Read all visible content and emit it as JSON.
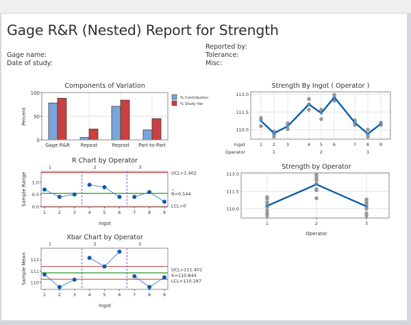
{
  "report": {
    "title": "Gage R&R (Nested) Report for Strength",
    "left_meta": [
      "Gage name:",
      "Date of study:"
    ],
    "right_meta": [
      "Reported by:",
      "Tolerance:",
      "Misc:"
    ]
  },
  "colors": {
    "contribution": "#7ba4d8",
    "study_var": "#c94040",
    "series_line": "#0a5caa",
    "points": "#999999",
    "control_limit": "#c06060",
    "center_line": "#3a9a3a",
    "divider": "#7a4fd0"
  },
  "chart_data": [
    {
      "id": "components",
      "type": "bar",
      "title": "Components of Variation",
      "ylabel": "Percent",
      "categories": [
        "Gage R&R",
        "Repeat",
        "Reprod",
        "Part-to-Part"
      ],
      "series": [
        {
          "name": "% Contribution",
          "values": [
            78,
            5,
            71,
            21
          ]
        },
        {
          "name": "% Study Var",
          "values": [
            88,
            23,
            84,
            45
          ]
        }
      ],
      "ylim": [
        0,
        100
      ],
      "yticks": [
        0,
        50,
        100
      ],
      "legend": "right"
    },
    {
      "id": "r_chart",
      "type": "line",
      "title": "R Chart by Operator",
      "xlabel": "Ingot",
      "ylabel": "Sample Range",
      "x": [
        1,
        2,
        3,
        4,
        5,
        6,
        7,
        8,
        9
      ],
      "values": [
        0.7,
        0.4,
        0.5,
        0.9,
        0.8,
        0.4,
        0.4,
        0.6,
        0.2
      ],
      "groups": [
        "1",
        "2",
        "3"
      ],
      "group_breaks": [
        3.5,
        6.5
      ],
      "ucl": 1.402,
      "center": 0.544,
      "lcl": 0,
      "ucl_label": "UCL=1.402",
      "center_label": "R=0.544",
      "lcl_label": "LCL=0",
      "ylim": [
        -0.02,
        1.45
      ],
      "yticks": [
        "0.0",
        "0.5",
        "1.0"
      ]
    },
    {
      "id": "xbar_chart",
      "type": "line",
      "title": "Xbar Chart by Operator",
      "xlabel": "Ingot",
      "ylabel": "Sample Mean",
      "x": [
        1,
        2,
        3,
        4,
        5,
        6,
        7,
        8,
        9
      ],
      "values": [
        110.7,
        109.6,
        110.25,
        112.15,
        111.4,
        112.7,
        110.55,
        109.6,
        110.45
      ],
      "groups": [
        "1",
        "2",
        "3"
      ],
      "group_breaks": [
        3.5,
        6.5
      ],
      "ucl": 111.401,
      "center": 110.844,
      "lcl": 110.287,
      "ucl_label": "UCL=111.401",
      "center_label": "X=110.844",
      "lcl_label": "LCL=110.287",
      "ylim": [
        109.4,
        113.0
      ],
      "yticks": [
        "110",
        "111",
        "112"
      ]
    },
    {
      "id": "by_ingot",
      "type": "line",
      "title": "Strength By Ingot ( Operator )",
      "x_label_rows": [
        "Ingot",
        "Operator"
      ],
      "ingots": [
        "1",
        "2",
        "3",
        "4",
        "5",
        "6",
        "7",
        "8",
        "9"
      ],
      "operators": [
        "1",
        "2",
        "3"
      ],
      "means": [
        110.75,
        109.7,
        110.3,
        112.15,
        111.4,
        112.75,
        110.6,
        109.65,
        110.5
      ],
      "points": [
        [
          111.0,
          110.85,
          110.3
        ],
        [
          109.85,
          109.6,
          109.4
        ],
        [
          110.55,
          110.45,
          110.05
        ],
        [
          112.6,
          112.15,
          111.7
        ],
        [
          111.7,
          111.6,
          110.9
        ],
        [
          112.95,
          112.7,
          112.45
        ],
        [
          110.8,
          110.6,
          110.4
        ],
        [
          110.0,
          109.6,
          109.4
        ],
        [
          110.6,
          110.5,
          110.4
        ]
      ],
      "ylim": [
        109.2,
        113.2
      ],
      "yticks": [
        "110.0",
        "111.5",
        "113.0"
      ]
    },
    {
      "id": "by_operator",
      "type": "line",
      "title": "Strength by Operator",
      "xlabel": "Operator",
      "categories": [
        "1",
        "2",
        "3"
      ],
      "means": [
        110.25,
        112.1,
        110.2
      ],
      "points": [
        [
          111.0,
          110.85,
          110.55,
          110.3,
          110.15,
          109.85,
          109.6,
          109.4
        ],
        [
          112.95,
          112.8,
          112.6,
          112.45,
          112.15,
          111.7,
          111.6,
          110.9
        ],
        [
          110.8,
          110.6,
          110.5,
          110.4,
          110.2,
          110.0,
          109.6,
          109.4
        ]
      ],
      "ylim": [
        109.2,
        113.1
      ],
      "yticks": [
        "110.0",
        "111.5",
        "113.0"
      ]
    }
  ]
}
